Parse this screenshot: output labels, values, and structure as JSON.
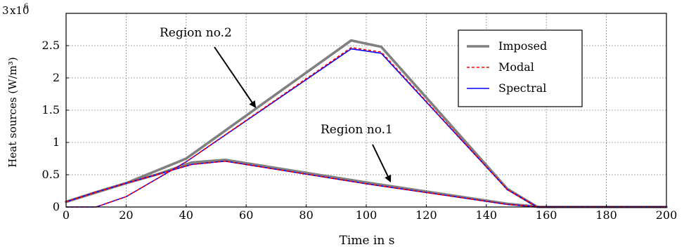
{
  "chart_data": {
    "type": "line",
    "title": "",
    "xlabel": "Time in s",
    "ylabel": "Heat sources (W/m³)",
    "xlim": [
      0,
      200
    ],
    "ylim": [
      0,
      3000000
    ],
    "xticks": [
      0,
      20,
      40,
      60,
      80,
      100,
      120,
      140,
      160,
      180,
      200
    ],
    "xtick_labels": [
      "0",
      "20",
      "40",
      "60",
      "80",
      "100",
      "120",
      "140",
      "160",
      "180",
      "200"
    ],
    "yticks": [
      0,
      500000,
      1000000,
      1500000,
      2000000,
      2500000,
      3000000
    ],
    "ytick_labels": [
      "0",
      "0.5",
      "1",
      "1.5",
      "2",
      "2.5",
      "3"
    ],
    "y_multiplier_label": "x10",
    "y_multiplier_exp": "6",
    "y_multiplier_value": "3",
    "grid": true,
    "legend_position": "top-right",
    "series": [
      {
        "name": "Imposed",
        "color": "#808080",
        "style": "solid",
        "region": "Region no.2",
        "x": [
          0,
          20,
          40,
          95,
          105,
          147,
          157,
          200
        ],
        "y": [
          80000,
          370000,
          750000,
          2580000,
          2480000,
          280000,
          0,
          0
        ]
      },
      {
        "name": "Modal",
        "color": "#ff0000",
        "style": "dashed",
        "region": "Region no.2",
        "x": [
          0,
          10,
          20,
          40,
          95,
          105,
          147,
          157,
          200
        ],
        "y": [
          0,
          0,
          160000,
          700000,
          2470000,
          2400000,
          270000,
          0,
          0
        ]
      },
      {
        "name": "Spectral",
        "color": "#0000ff",
        "style": "solid",
        "region": "Region no.2",
        "x": [
          0,
          10,
          20,
          40,
          95,
          105,
          147,
          157,
          200
        ],
        "y": [
          0,
          0,
          160000,
          700000,
          2450000,
          2380000,
          270000,
          0,
          0
        ]
      },
      {
        "name": "Imposed",
        "color": "#808080",
        "style": "solid",
        "region": "Region no.1",
        "x": [
          0,
          10,
          20,
          30,
          42,
          53,
          100,
          147,
          158,
          200
        ],
        "y": [
          80000,
          230000,
          370000,
          500000,
          690000,
          730000,
          380000,
          50000,
          0,
          0
        ]
      },
      {
        "name": "Modal",
        "color": "#ff0000",
        "style": "dashed",
        "region": "Region no.1",
        "x": [
          0,
          10,
          20,
          30,
          42,
          53,
          100,
          147,
          158,
          200
        ],
        "y": [
          80000,
          230000,
          370000,
          500000,
          660000,
          710000,
          360000,
          40000,
          0,
          0
        ]
      },
      {
        "name": "Spectral",
        "color": "#0000ff",
        "style": "solid",
        "region": "Region no.1",
        "x": [
          0,
          10,
          20,
          30,
          42,
          53,
          100,
          147,
          158,
          200
        ],
        "y": [
          80000,
          230000,
          370000,
          500000,
          660000,
          710000,
          360000,
          40000,
          0,
          0
        ]
      }
    ],
    "annotations": [
      {
        "text": "Region no.2",
        "arrow_tip": [
          63,
          1550000
        ]
      },
      {
        "text": "Region no.1",
        "arrow_tip": [
          108,
          400000
        ]
      }
    ]
  }
}
